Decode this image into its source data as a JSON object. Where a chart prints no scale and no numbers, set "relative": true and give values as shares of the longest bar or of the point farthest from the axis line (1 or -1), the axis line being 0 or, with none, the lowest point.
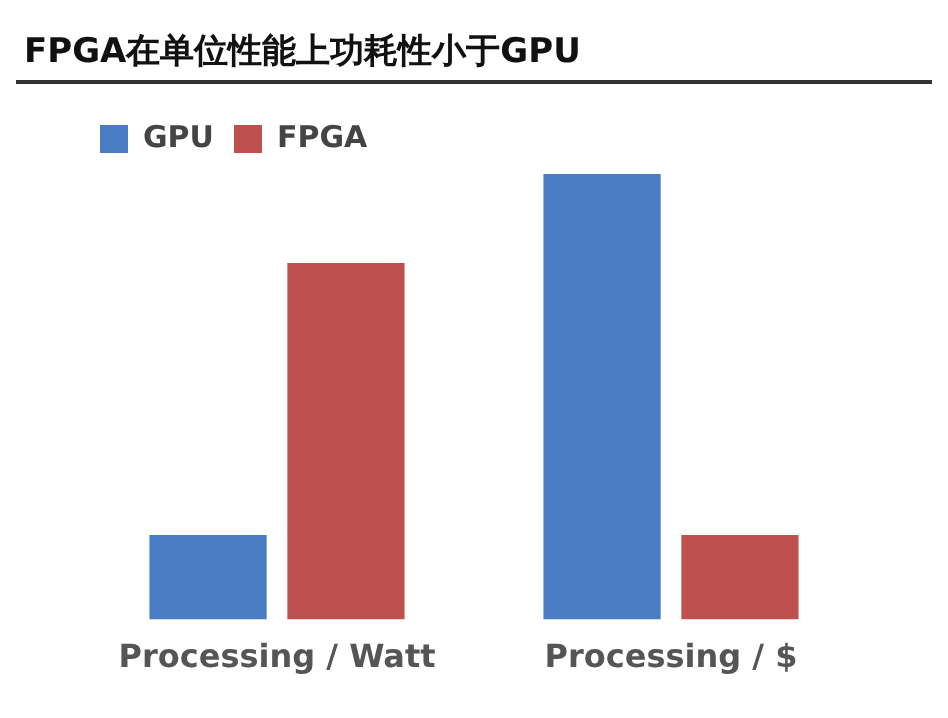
{
  "chart_data": {
    "type": "bar",
    "title": "FPGA在单位性能上功耗性小于GPU",
    "categories": [
      "Processing / Watt",
      "Processing / $"
    ],
    "series": [
      {
        "name": "GPU",
        "color": "#4a7cc4",
        "values": [
          0.19,
          1
        ]
      },
      {
        "name": "FPGA",
        "color": "#c0504d",
        "values": [
          0.8,
          0.19
        ]
      }
    ],
    "relative": true,
    "legend": "top left",
    "grid": false
  }
}
